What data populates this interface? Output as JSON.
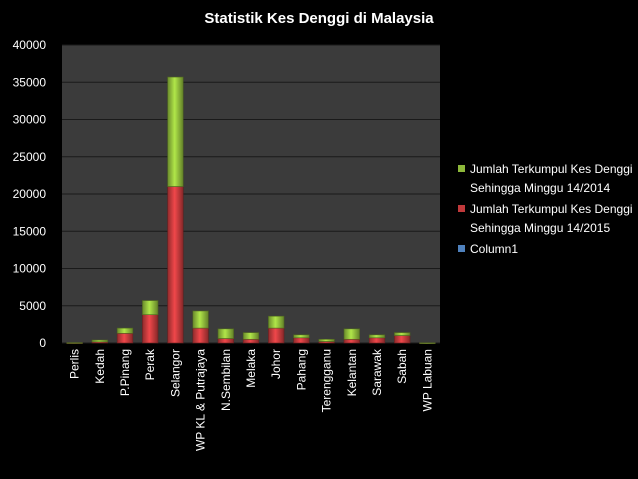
{
  "chart_data": {
    "type": "bar",
    "stacked": true,
    "title": "Statistik Kes Denggi di Malaysia",
    "xlabel": "",
    "ylabel": "",
    "ylim": [
      0,
      40000
    ],
    "yticks": [
      0,
      5000,
      10000,
      15000,
      20000,
      25000,
      30000,
      35000,
      40000
    ],
    "grid": true,
    "legend_position": "right",
    "categories": [
      "Perlis",
      "Kedah",
      "P.Pinang",
      "Perak",
      "Selangor",
      "WP KL & Putrajaya",
      "N.Sembilan",
      "Melaka",
      "Johor",
      "Pahang",
      "Terengganu",
      "Kelantan",
      "Sarawak",
      "Sabah",
      "WP Labuan"
    ],
    "series": [
      {
        "name": "Column1",
        "color": "#4f81bd",
        "values": [
          0,
          0,
          0,
          0,
          0,
          0,
          0,
          0,
          0,
          0,
          0,
          0,
          0,
          0,
          0
        ]
      },
      {
        "name": "Jumlah Terkumpul Kes Denggi Sehingga Minggu 14/2015",
        "color": "#c0393b",
        "values": [
          30,
          150,
          1300,
          3800,
          21000,
          2000,
          600,
          500,
          2000,
          700,
          200,
          500,
          700,
          1000,
          20
        ]
      },
      {
        "name": "Jumlah Terkumpul Kes Denggi Sehingga Minggu 14/2014",
        "color": "#8db83a",
        "values": [
          20,
          250,
          700,
          1900,
          14700,
          2300,
          1300,
          900,
          1600,
          400,
          300,
          1400,
          400,
          400,
          10
        ]
      }
    ],
    "legend_order": [
      "Jumlah Terkumpul Kes Denggi Sehingga Minggu 14/2014",
      "Jumlah Terkumpul Kes Denggi Sehingga Minggu 14/2015",
      "Column1"
    ]
  }
}
